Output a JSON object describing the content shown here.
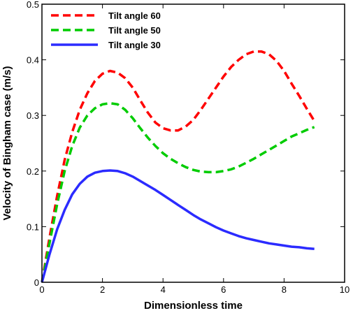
{
  "chart_data": {
    "type": "line",
    "title": "",
    "xlabel": "Dimensionless time",
    "ylabel": "Velocity of Bingham case (m/s)",
    "xlim": [
      0,
      10
    ],
    "ylim": [
      0,
      0.5
    ],
    "xticks": [
      0,
      2,
      4,
      6,
      8,
      10
    ],
    "yticks": [
      0,
      0.1,
      0.2,
      0.3,
      0.4,
      0.5
    ],
    "xtick_labels": [
      "0",
      "2",
      "4",
      "6",
      "8",
      "10"
    ],
    "ytick_labels": [
      "0",
      "0.1",
      "0.2",
      "0.3",
      "0.4",
      "0.5"
    ],
    "grid": false,
    "legend_position": "top-left",
    "series": [
      {
        "name": "Tilt angle 60",
        "color": "#ff0000",
        "style": "dashed",
        "x": [
          0,
          0.25,
          0.5,
          0.75,
          1.0,
          1.25,
          1.5,
          1.75,
          2.0,
          2.25,
          2.5,
          2.75,
          3.0,
          3.25,
          3.5,
          3.75,
          4.0,
          4.25,
          4.5,
          4.75,
          5.0,
          5.25,
          5.5,
          5.75,
          6.0,
          6.25,
          6.5,
          6.75,
          7.0,
          7.25,
          7.5,
          7.75,
          8.0,
          8.25,
          8.5,
          8.75,
          9.0
        ],
        "y": [
          0.0,
          0.08,
          0.155,
          0.22,
          0.27,
          0.31,
          0.34,
          0.362,
          0.375,
          0.38,
          0.377,
          0.367,
          0.35,
          0.327,
          0.305,
          0.287,
          0.277,
          0.273,
          0.273,
          0.28,
          0.292,
          0.31,
          0.33,
          0.35,
          0.37,
          0.387,
          0.4,
          0.41,
          0.415,
          0.415,
          0.41,
          0.398,
          0.38,
          0.357,
          0.335,
          0.312,
          0.29
        ]
      },
      {
        "name": "Tilt angle 50",
        "color": "#00cc00",
        "style": "dashed",
        "x": [
          0,
          0.25,
          0.5,
          0.75,
          1.0,
          1.25,
          1.5,
          1.75,
          2.0,
          2.25,
          2.5,
          2.75,
          3.0,
          3.25,
          3.5,
          3.75,
          4.0,
          4.25,
          4.5,
          4.75,
          5.0,
          5.25,
          5.5,
          5.75,
          6.0,
          6.25,
          6.5,
          6.75,
          7.0,
          7.25,
          7.5,
          7.75,
          8.0,
          8.25,
          8.5,
          8.75,
          9.0
        ],
        "y": [
          0.0,
          0.07,
          0.14,
          0.2,
          0.245,
          0.278,
          0.3,
          0.313,
          0.32,
          0.322,
          0.32,
          0.31,
          0.295,
          0.277,
          0.26,
          0.245,
          0.232,
          0.222,
          0.214,
          0.207,
          0.202,
          0.199,
          0.198,
          0.198,
          0.2,
          0.203,
          0.208,
          0.215,
          0.222,
          0.23,
          0.238,
          0.246,
          0.254,
          0.262,
          0.268,
          0.274,
          0.279
        ]
      },
      {
        "name": "Tilt angle 30",
        "color": "#2b2bff",
        "style": "solid",
        "x": [
          0,
          0.25,
          0.5,
          0.75,
          1.0,
          1.25,
          1.5,
          1.75,
          2.0,
          2.25,
          2.5,
          2.75,
          3.0,
          3.25,
          3.5,
          3.75,
          4.0,
          4.25,
          4.5,
          4.75,
          5.0,
          5.25,
          5.5,
          5.75,
          6.0,
          6.25,
          6.5,
          6.75,
          7.0,
          7.25,
          7.5,
          7.75,
          8.0,
          8.25,
          8.5,
          8.75,
          9.0
        ],
        "y": [
          0.0,
          0.05,
          0.095,
          0.13,
          0.158,
          0.177,
          0.19,
          0.197,
          0.2,
          0.201,
          0.2,
          0.196,
          0.19,
          0.182,
          0.174,
          0.166,
          0.157,
          0.148,
          0.139,
          0.13,
          0.121,
          0.113,
          0.106,
          0.099,
          0.093,
          0.088,
          0.083,
          0.079,
          0.076,
          0.073,
          0.07,
          0.068,
          0.066,
          0.064,
          0.063,
          0.061,
          0.06
        ]
      }
    ]
  }
}
